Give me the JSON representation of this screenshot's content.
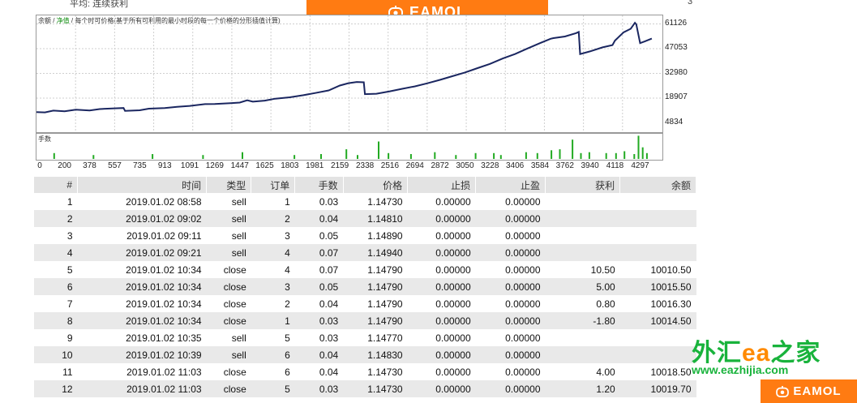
{
  "header": {
    "top_label": "平均: 连续获利",
    "top_count": "3",
    "banner_brand": "EAMOL",
    "banner_color": "#ff7b12"
  },
  "chart": {
    "legend_balance": "余额",
    "legend_separator": " / ",
    "legend_equity": "净值",
    "legend_desc": " / 每个时可价格(基于所有可利用的最小时段的每一个价格的分形插值计算)",
    "volume_label": "手数",
    "line_color": "#1a2660",
    "volume_color": "#22aa22"
  },
  "chart_data": {
    "type": "line",
    "ylabel": "",
    "xlabel": "",
    "y_ticks": [
      "61126",
      "47053",
      "32980",
      "18907",
      "4834"
    ],
    "x_ticks": [
      "0",
      "200",
      "378",
      "557",
      "735",
      "913",
      "1091",
      "1269",
      "1447",
      "1625",
      "1803",
      "1981",
      "2159",
      "2338",
      "2516",
      "2694",
      "2872",
      "3050",
      "3228",
      "3406",
      "3584",
      "3762",
      "3940",
      "4118",
      "4297"
    ],
    "xlim": [
      0,
      4450
    ],
    "ylim": [
      0,
      66000
    ],
    "series": [
      {
        "x": [
          0,
          60,
          120,
          200,
          280,
          378,
          450,
          557,
          620,
          630,
          735,
          800,
          913,
          1000,
          1091,
          1200,
          1269,
          1380,
          1447,
          1500,
          1540,
          1625,
          1700,
          1803,
          1900,
          1981,
          2080,
          2159,
          2220,
          2280,
          2330,
          2338,
          2420,
          2516,
          2600,
          2694,
          2780,
          2872,
          2960,
          3050,
          3140,
          3228,
          3320,
          3406,
          3490,
          3584,
          3660,
          3680,
          3762,
          3840,
          3860,
          3870,
          3940,
          4030,
          4100,
          4118,
          4180,
          4230,
          4260,
          4270,
          4297,
          4330,
          4380
        ],
        "y": [
          11000,
          10800,
          11800,
          11400,
          12300,
          11900,
          12700,
          13100,
          13300,
          11700,
          12000,
          12900,
          13300,
          14000,
          14500,
          15500,
          15600,
          16000,
          16400,
          17700,
          16900,
          17500,
          18600,
          19400,
          20600,
          21800,
          23300,
          26100,
          27400,
          28100,
          27900,
          21200,
          21400,
          22800,
          24200,
          25600,
          27300,
          29300,
          31400,
          33500,
          36000,
          38400,
          41500,
          44000,
          47000,
          50200,
          52700,
          53100,
          54000,
          55900,
          56600,
          44000,
          45500,
          47800,
          49100,
          51700,
          56400,
          58400,
          61800,
          60900,
          50200,
          51200,
          52800
        ]
      }
    ],
    "volumes": [
      {
        "x": 120,
        "v": 0.3
      },
      {
        "x": 400,
        "v": 0.2
      },
      {
        "x": 820,
        "v": 0.25
      },
      {
        "x": 1180,
        "v": 0.2
      },
      {
        "x": 1460,
        "v": 0.35
      },
      {
        "x": 1830,
        "v": 0.2
      },
      {
        "x": 2020,
        "v": 0.25
      },
      {
        "x": 2200,
        "v": 0.5
      },
      {
        "x": 2280,
        "v": 0.2
      },
      {
        "x": 2430,
        "v": 0.9
      },
      {
        "x": 2500,
        "v": 0.3
      },
      {
        "x": 2660,
        "v": 0.25
      },
      {
        "x": 2830,
        "v": 0.35
      },
      {
        "x": 2980,
        "v": 0.2
      },
      {
        "x": 3120,
        "v": 0.3
      },
      {
        "x": 3250,
        "v": 0.3
      },
      {
        "x": 3300,
        "v": 0.2
      },
      {
        "x": 3480,
        "v": 0.35
      },
      {
        "x": 3560,
        "v": 0.3
      },
      {
        "x": 3660,
        "v": 0.45
      },
      {
        "x": 3720,
        "v": 0.5
      },
      {
        "x": 3810,
        "v": 1.0
      },
      {
        "x": 3870,
        "v": 0.3
      },
      {
        "x": 3930,
        "v": 0.35
      },
      {
        "x": 4050,
        "v": 0.3
      },
      {
        "x": 4120,
        "v": 0.3
      },
      {
        "x": 4180,
        "v": 0.4
      },
      {
        "x": 4250,
        "v": 0.25
      },
      {
        "x": 4280,
        "v": 1.2
      },
      {
        "x": 4310,
        "v": 0.6
      },
      {
        "x": 4340,
        "v": 0.3
      }
    ],
    "grid": true
  },
  "table": {
    "headers": [
      "#",
      "时间",
      "类型",
      "订单",
      "手数",
      "价格",
      "止损",
      "止盈",
      "获利",
      "余额"
    ],
    "rows": [
      [
        "1",
        "2019.01.02 08:58",
        "sell",
        "1",
        "0.03",
        "1.14730",
        "0.00000",
        "0.00000",
        "",
        ""
      ],
      [
        "2",
        "2019.01.02 09:02",
        "sell",
        "2",
        "0.04",
        "1.14810",
        "0.00000",
        "0.00000",
        "",
        ""
      ],
      [
        "3",
        "2019.01.02 09:11",
        "sell",
        "3",
        "0.05",
        "1.14890",
        "0.00000",
        "0.00000",
        "",
        ""
      ],
      [
        "4",
        "2019.01.02 09:21",
        "sell",
        "4",
        "0.07",
        "1.14940",
        "0.00000",
        "0.00000",
        "",
        ""
      ],
      [
        "5",
        "2019.01.02 10:34",
        "close",
        "4",
        "0.07",
        "1.14790",
        "0.00000",
        "0.00000",
        "10.50",
        "10010.50"
      ],
      [
        "6",
        "2019.01.02 10:34",
        "close",
        "3",
        "0.05",
        "1.14790",
        "0.00000",
        "0.00000",
        "5.00",
        "10015.50"
      ],
      [
        "7",
        "2019.01.02 10:34",
        "close",
        "2",
        "0.04",
        "1.14790",
        "0.00000",
        "0.00000",
        "0.80",
        "10016.30"
      ],
      [
        "8",
        "2019.01.02 10:34",
        "close",
        "1",
        "0.03",
        "1.14790",
        "0.00000",
        "0.00000",
        "-1.80",
        "10014.50"
      ],
      [
        "9",
        "2019.01.02 10:35",
        "sell",
        "5",
        "0.03",
        "1.14770",
        "0.00000",
        "0.00000",
        "",
        ""
      ],
      [
        "10",
        "2019.01.02 10:39",
        "sell",
        "6",
        "0.04",
        "1.14830",
        "0.00000",
        "0.00000",
        "",
        ""
      ],
      [
        "11",
        "2019.01.02 11:03",
        "close",
        "6",
        "0.04",
        "1.14730",
        "0.00000",
        "0.00000",
        "4.00",
        "10018.50"
      ],
      [
        "12",
        "2019.01.02 11:03",
        "close",
        "5",
        "0.03",
        "1.14730",
        "0.00000",
        "0.00000",
        "1.20",
        "10019.70"
      ]
    ]
  },
  "watermark": {
    "cn_prefix": "外汇",
    "cn_ea": "ea",
    "cn_suffix": "之家",
    "url": "www.eazhijia.com",
    "brand": "EAMOL"
  }
}
